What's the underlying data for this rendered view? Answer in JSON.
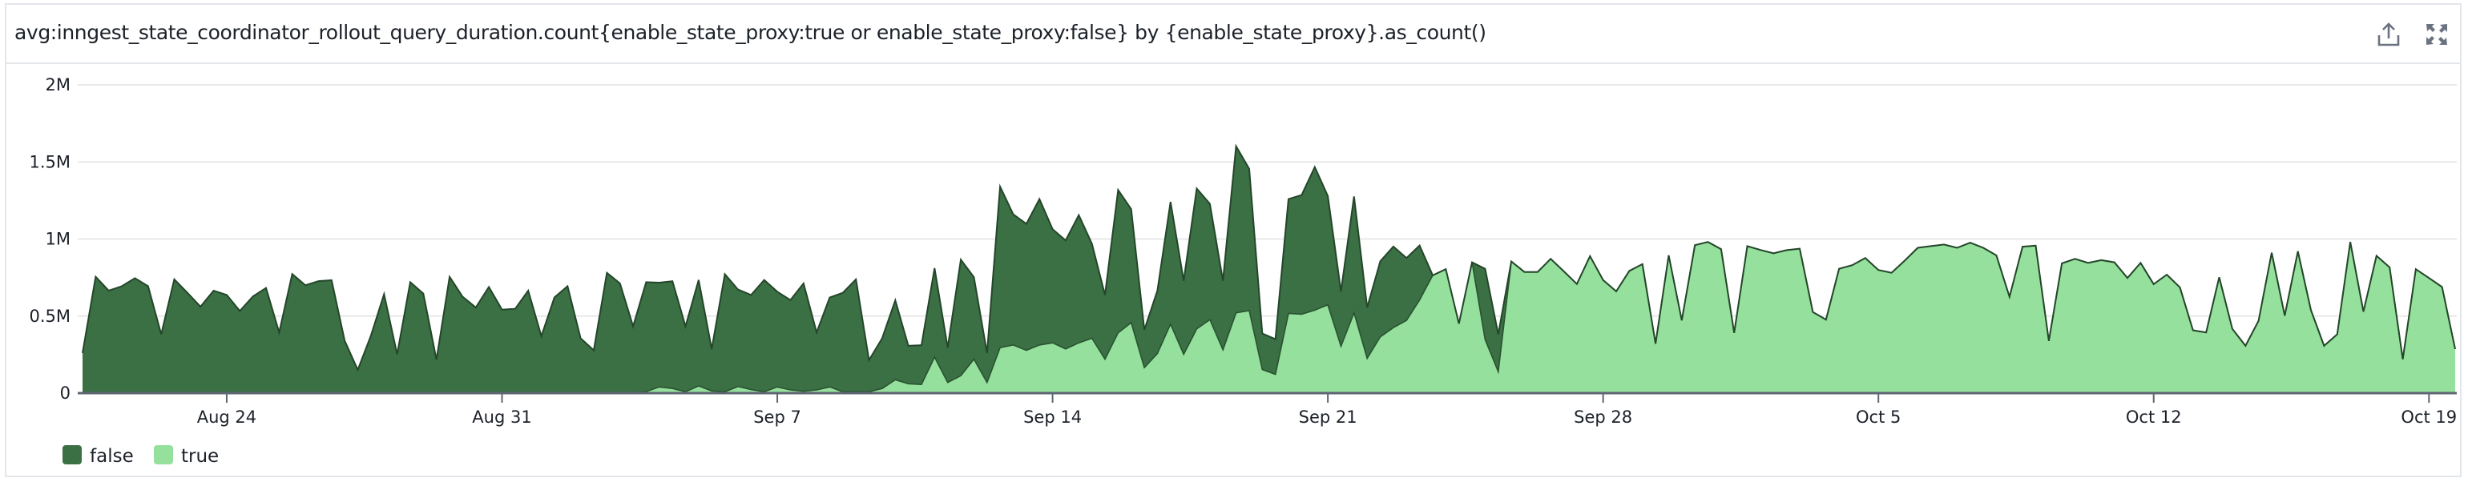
{
  "header": {
    "title": "avg:inngest_state_coordinator_rollout_query_duration.count{enable_state_proxy:true or enable_state_proxy:false} by {enable_state_proxy}.as_count()",
    "icons": [
      "export-icon",
      "expand-icon"
    ]
  },
  "chart_data": {
    "type": "area",
    "stacked": true,
    "title": "avg:inngest_state_coordinator_rollout_query_duration.count{enable_state_proxy:true or enable_state_proxy:false} by {enable_state_proxy}.as_count()",
    "ylim": [
      0,
      2
    ],
    "y_unit": "M",
    "y_ticks": [
      {
        "value": 0,
        "label": "0"
      },
      {
        "value": 0.5,
        "label": "0.5M"
      },
      {
        "value": 1,
        "label": "1M"
      },
      {
        "value": 1.5,
        "label": "1.5M"
      },
      {
        "value": 2,
        "label": "2M"
      }
    ],
    "x_ticks": [
      "Aug 24",
      "Aug 31",
      "Sep 7",
      "Sep 14",
      "Sep 21",
      "Sep 28",
      "Oct 5",
      "Oct 12",
      "Oct 19"
    ],
    "grid": true,
    "legend_placement": "bottom-left",
    "x": [
      "Aug 20 08:00",
      "Aug 20 16:00",
      "Aug 21 00:00",
      "Aug 21 08:00",
      "Aug 21 16:00",
      "Aug 22 00:00",
      "Aug 22 08:00",
      "Aug 22 16:00",
      "Aug 23 00:00",
      "Aug 23 08:00",
      "Aug 23 16:00",
      "Aug 24 00:00",
      "Aug 24 08:00",
      "Aug 24 16:00",
      "Aug 25 00:00",
      "Aug 25 08:00",
      "Aug 25 16:00",
      "Aug 26 00:00",
      "Aug 26 08:00",
      "Aug 26 16:00",
      "Aug 27 00:00",
      "Aug 27 08:00",
      "Aug 27 16:00",
      "Aug 28 00:00",
      "Aug 28 08:00",
      "Aug 28 16:00",
      "Aug 29 00:00",
      "Aug 29 08:00",
      "Aug 29 16:00",
      "Aug 30 00:00",
      "Aug 30 08:00",
      "Aug 30 16:00",
      "Aug 31 00:00",
      "Aug 31 08:00",
      "Aug 31 16:00",
      "Sep 1 00:00",
      "Sep 1 08:00",
      "Sep 1 16:00",
      "Sep 2 00:00",
      "Sep 2 08:00",
      "Sep 2 16:00",
      "Sep 3 00:00",
      "Sep 3 08:00",
      "Sep 3 16:00",
      "Sep 4 00:00",
      "Sep 4 08:00",
      "Sep 4 16:00",
      "Sep 5 00:00",
      "Sep 5 08:00",
      "Sep 5 16:00",
      "Sep 6 00:00",
      "Sep 6 08:00",
      "Sep 6 16:00",
      "Sep 7 00:00",
      "Sep 7 08:00",
      "Sep 7 16:00",
      "Sep 8 00:00",
      "Sep 8 08:00",
      "Sep 8 16:00",
      "Sep 9 00:00",
      "Sep 9 08:00",
      "Sep 9 16:00",
      "Sep 10 00:00",
      "Sep 10 08:00",
      "Sep 10 16:00",
      "Sep 11 00:00",
      "Sep 11 08:00",
      "Sep 11 16:00",
      "Sep 12 00:00",
      "Sep 12 08:00",
      "Sep 12 16:00",
      "Sep 13 00:00",
      "Sep 13 08:00",
      "Sep 13 16:00",
      "Sep 14 00:00",
      "Sep 14 08:00",
      "Sep 14 16:00",
      "Sep 15 00:00",
      "Sep 15 08:00",
      "Sep 15 16:00",
      "Sep 16 00:00",
      "Sep 16 08:00",
      "Sep 16 16:00",
      "Sep 17 00:00",
      "Sep 17 08:00",
      "Sep 17 16:00",
      "Sep 18 00:00",
      "Sep 18 08:00",
      "Sep 18 16:00",
      "Sep 19 00:00",
      "Sep 19 08:00",
      "Sep 19 16:00",
      "Sep 20 00:00",
      "Sep 20 08:00",
      "Sep 20 16:00",
      "Sep 21 00:00",
      "Sep 21 08:00",
      "Sep 21 16:00",
      "Sep 22 00:00",
      "Sep 22 08:00",
      "Sep 22 16:00",
      "Sep 23 00:00",
      "Sep 23 08:00",
      "Sep 23 16:00",
      "Sep 24 00:00",
      "Sep 24 08:00",
      "Sep 24 16:00",
      "Sep 25 00:00",
      "Sep 25 08:00",
      "Sep 25 16:00",
      "Sep 26 00:00",
      "Sep 26 08:00",
      "Sep 26 16:00",
      "Sep 27 00:00",
      "Sep 27 08:00",
      "Sep 27 16:00",
      "Sep 28 00:00",
      "Sep 28 08:00",
      "Sep 28 16:00",
      "Sep 29 00:00",
      "Sep 29 08:00",
      "Sep 29 16:00",
      "Sep 30 00:00",
      "Sep 30 08:00",
      "Sep 30 16:00",
      "Oct 1 00:00",
      "Oct 1 08:00",
      "Oct 1 16:00",
      "Oct 2 00:00",
      "Oct 2 08:00",
      "Oct 2 16:00",
      "Oct 3 00:00",
      "Oct 3 08:00",
      "Oct 3 16:00",
      "Oct 4 00:00",
      "Oct 4 08:00",
      "Oct 4 16:00",
      "Oct 5 00:00",
      "Oct 5 08:00",
      "Oct 5 16:00",
      "Oct 6 00:00",
      "Oct 6 08:00",
      "Oct 6 16:00",
      "Oct 7 00:00",
      "Oct 7 08:00",
      "Oct 7 16:00",
      "Oct 8 00:00",
      "Oct 8 08:00",
      "Oct 8 16:00",
      "Oct 9 00:00",
      "Oct 9 08:00",
      "Oct 9 16:00",
      "Oct 10 00:00",
      "Oct 10 08:00",
      "Oct 10 16:00",
      "Oct 11 00:00",
      "Oct 11 08:00",
      "Oct 11 16:00",
      "Oct 12 00:00",
      "Oct 12 08:00",
      "Oct 12 16:00",
      "Oct 13 00:00",
      "Oct 13 08:00",
      "Oct 13 16:00",
      "Oct 14 00:00",
      "Oct 14 08:00",
      "Oct 14 16:00",
      "Oct 15 00:00",
      "Oct 15 08:00",
      "Oct 15 16:00",
      "Oct 16 00:00",
      "Oct 16 08:00",
      "Oct 16 16:00",
      "Oct 17 00:00",
      "Oct 17 08:00",
      "Oct 17 16:00",
      "Oct 18 00:00",
      "Oct 18 08:00",
      "Oct 18 16:00",
      "Oct 19 00:00",
      "Oct 19 08:00",
      "Oct 19 16:00"
    ],
    "series": [
      {
        "name": "false",
        "color": "#3b6f44",
        "values": [
          0.26,
          0.755,
          0.665,
          0.694,
          0.746,
          0.694,
          0.382,
          0.738,
          0.651,
          0.561,
          0.665,
          0.637,
          0.533,
          0.628,
          0.682,
          0.394,
          0.773,
          0.7,
          0.727,
          0.733,
          0.339,
          0.151,
          0.373,
          0.642,
          0.252,
          0.72,
          0.646,
          0.217,
          0.755,
          0.625,
          0.556,
          0.689,
          0.542,
          0.547,
          0.665,
          0.37,
          0.621,
          0.694,
          0.356,
          0.278,
          0.781,
          0.712,
          0.434,
          0.71,
          0.677,
          0.696,
          0.425,
          0.687,
          0.272,
          0.763,
          0.629,
          0.614,
          0.725,
          0.618,
          0.583,
          0.7,
          0.373,
          0.581,
          0.642,
          0.729,
          0.205,
          0.326,
          0.515,
          0.246,
          0.255,
          0.577,
          0.226,
          0.753,
          0.532,
          0.191,
          1.045,
          0.848,
          0.82,
          0.947,
          0.738,
          0.705,
          0.829,
          0.613,
          0.417,
          0.927,
          0.737,
          0.246,
          0.408,
          0.793,
          0.477,
          0.911,
          0.751,
          0.448,
          1.081,
          0.92,
          0.234,
          0.228,
          0.742,
          0.773,
          0.929,
          0.706,
          0.356,
          0.755,
          0.33,
          0.491,
          0.526,
          0.405,
          0.354,
          0,
          0,
          0,
          0,
          0.46,
          0.243,
          0,
          0,
          0,
          0,
          0,
          0,
          0,
          0,
          0,
          0,
          0,
          0,
          0,
          0,
          0,
          0,
          0,
          0,
          0,
          0,
          0,
          0,
          0,
          0,
          0,
          0,
          0,
          0,
          0,
          0,
          0,
          0,
          0,
          0,
          0,
          0,
          0,
          0,
          0,
          0,
          0,
          0,
          0,
          0,
          0,
          0,
          0,
          0,
          0,
          0,
          0,
          0,
          0,
          0,
          0,
          0,
          0,
          0,
          0,
          0,
          0,
          0,
          0,
          0,
          0,
          0,
          0,
          0,
          0,
          0,
          0,
          0,
          0
        ]
      },
      {
        "name": "true",
        "color": "#94e09c",
        "values": [
          0,
          0,
          0,
          0,
          0,
          0,
          0,
          0,
          0,
          0,
          0,
          0,
          0,
          0,
          0,
          0,
          0,
          0,
          0,
          0,
          0,
          0,
          0,
          0,
          0,
          0,
          0,
          0,
          0,
          0,
          0,
          0,
          0,
          0,
          0,
          0,
          0,
          0,
          0,
          0,
          0,
          0,
          0,
          0.01,
          0.04,
          0.03,
          0.009,
          0.047,
          0.014,
          0.009,
          0.043,
          0.023,
          0.009,
          0.04,
          0.021,
          0.012,
          0.021,
          0.04,
          0.009,
          0.009,
          0.009,
          0.03,
          0.087,
          0.061,
          0.056,
          0.234,
          0.069,
          0.113,
          0.22,
          0.069,
          0.295,
          0.312,
          0.278,
          0.312,
          0.326,
          0.286,
          0.326,
          0.356,
          0.22,
          0.391,
          0.457,
          0.165,
          0.257,
          0.448,
          0.252,
          0.417,
          0.477,
          0.281,
          0.521,
          0.535,
          0.153,
          0.122,
          0.517,
          0.512,
          0.538,
          0.573,
          0.304,
          0.521,
          0.226,
          0.365,
          0.425,
          0.472,
          0.604,
          0.764,
          0.804,
          0.451,
          0.849,
          0.347,
          0.139,
          0.854,
          0.786,
          0.786,
          0.871,
          0.79,
          0.708,
          0.889,
          0.733,
          0.66,
          0.793,
          0.837,
          0.321,
          0.894,
          0.472,
          0.96,
          0.981,
          0.934,
          0.391,
          0.954,
          0.929,
          0.907,
          0.928,
          0.937,
          0.526,
          0.477,
          0.807,
          0.83,
          0.877,
          0.799,
          0.781,
          0.859,
          0.943,
          0.954,
          0.964,
          0.943,
          0.976,
          0.943,
          0.894,
          0.625,
          0.95,
          0.957,
          0.339,
          0.842,
          0.871,
          0.845,
          0.863,
          0.849,
          0.747,
          0.845,
          0.707,
          0.769,
          0.686,
          0.408,
          0.394,
          0.752,
          0.417,
          0.307,
          0.469,
          0.911,
          0.503,
          0.92,
          0.538,
          0.307,
          0.382,
          0.981,
          0.529,
          0.891,
          0.816,
          0.22,
          0.804,
          0.747,
          0.689,
          0.286
        ]
      }
    ]
  }
}
